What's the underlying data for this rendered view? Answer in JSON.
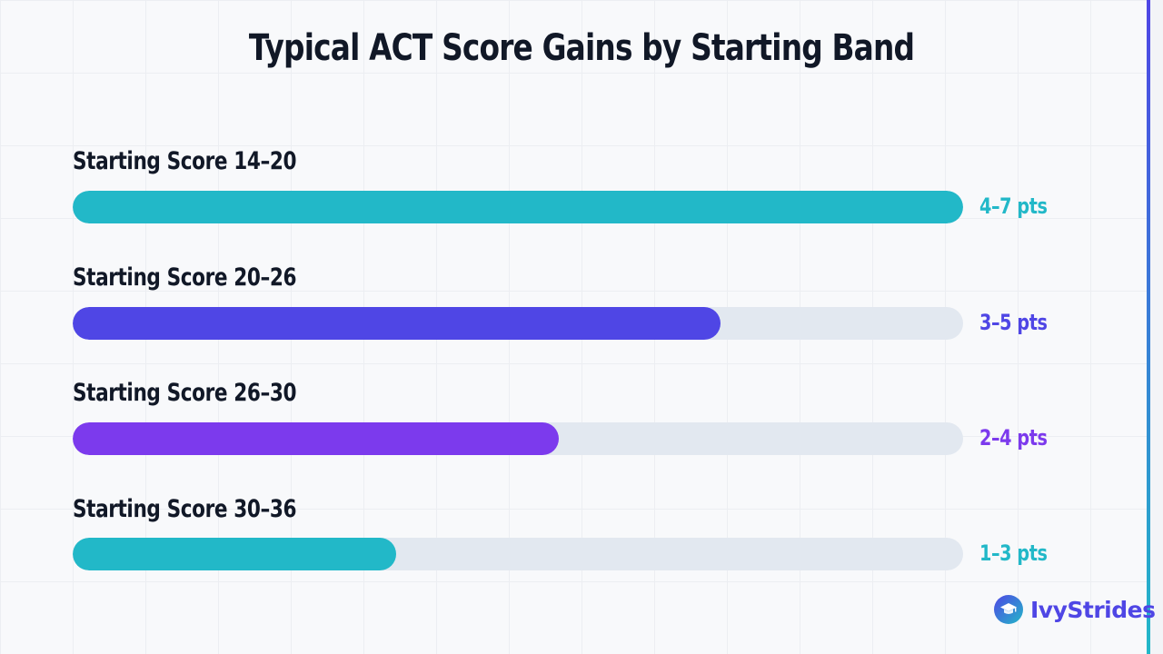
{
  "chart_data": {
    "type": "bar",
    "orientation": "horizontal",
    "title": "Typical ACT Score Gains by Starting Band",
    "xlabel": "",
    "ylabel": "",
    "xlim": [
      0,
      5.5
    ],
    "grid": true,
    "legend": "none",
    "categories": [
      "Starting Score 14–20",
      "Starting Score 20–26",
      "Starting Score 26–30",
      "Starting Score 30–36"
    ],
    "values": [
      5.5,
      4,
      3,
      2
    ],
    "value_labels": [
      "4–7 pts",
      "3–5 pts",
      "2–4 pts",
      "1–3 pts"
    ],
    "colors": [
      "#22b8c8",
      "#4f46e5",
      "#7c3aed",
      "#22b8c8"
    ]
  },
  "brand": {
    "name": "IvyStrides",
    "icon": "graduation-cap-icon"
  },
  "theme": {
    "track_color": "#e2e8f0",
    "text_color": "#111827",
    "accent": "#4f46e5"
  }
}
